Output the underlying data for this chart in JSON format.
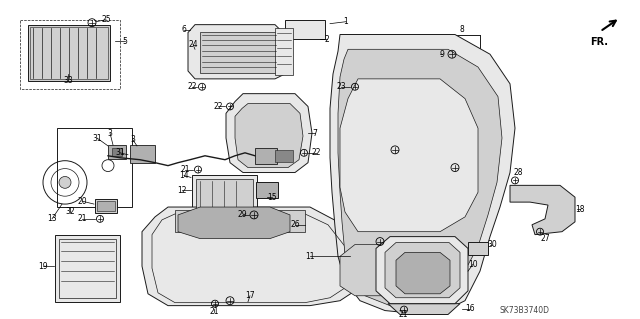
{
  "bg_color": "#ffffff",
  "diagram_code": "SK73B3740D",
  "fr_label": "FR.",
  "line_color": "#1a1a1a",
  "label_color": "#000000",
  "font_size": 5.5,
  "lw": 0.7,
  "fill_light": "#e8e8e8",
  "fill_mid": "#d0d0d0",
  "fill_dark": "#b0b0b0",
  "fill_hatched": "#c8c8c8"
}
